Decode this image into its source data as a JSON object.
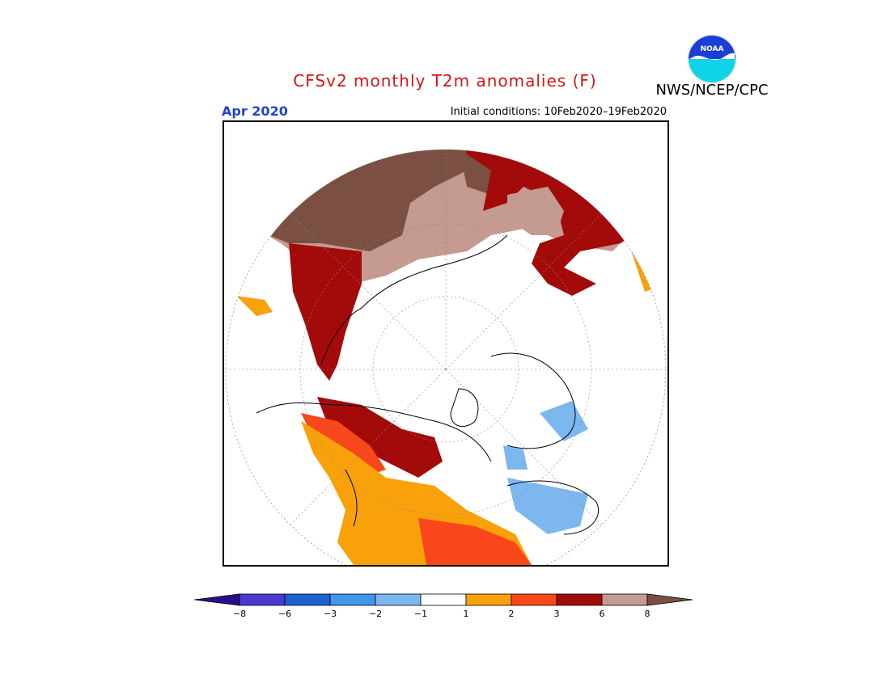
{
  "title": "CFSv2 monthly T2m anomalies (F)",
  "agency": "NWS/NCEP/CPC",
  "valid_month": "Apr 2020",
  "initial_conditions": "Initial conditions: 10Feb2020–19Feb2020",
  "colors": {
    "title": "#d41515",
    "valid_month": "#2244cc"
  },
  "logo": {
    "text": "NOAA",
    "icon": "noaa-seal-icon"
  },
  "colorbar": {
    "units": "F",
    "bins": [
      {
        "color": "#2a0c8f",
        "shape": "arrow-left"
      },
      {
        "color": "#4a3ad0"
      },
      {
        "color": "#1e62d2"
      },
      {
        "color": "#3f96ec"
      },
      {
        "color": "#7cb8ef"
      },
      {
        "color": "#ffffff"
      },
      {
        "color": "#f9a10b"
      },
      {
        "color": "#f8471a"
      },
      {
        "color": "#a30b0b"
      },
      {
        "color": "#c59a91"
      },
      {
        "color": "#7b5043",
        "shape": "arrow-right"
      }
    ],
    "ticks": [
      "−8",
      "−6",
      "−3",
      "−2",
      "−1",
      "1",
      "2",
      "3",
      "6",
      "8"
    ]
  }
}
